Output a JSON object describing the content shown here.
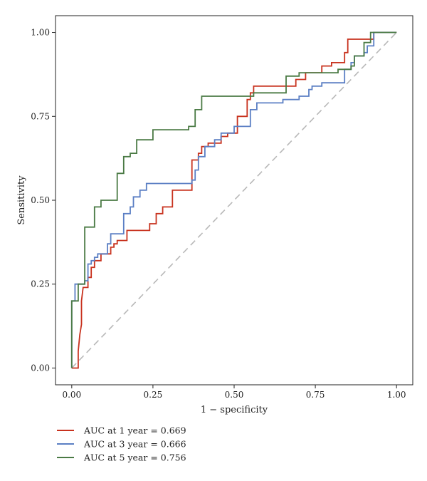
{
  "chart_data": {
    "type": "line",
    "title": "",
    "xlabel": "1 − specificity",
    "ylabel": "Sensitivity",
    "xlim": [
      -0.05,
      1.05
    ],
    "ylim": [
      -0.05,
      1.05
    ],
    "x_ticks": [
      0,
      0.25,
      0.5,
      0.75,
      1
    ],
    "y_ticks": [
      0,
      0.25,
      0.5,
      0.75,
      1
    ],
    "x_tick_labels": [
      "0.00",
      "0.25",
      "0.50",
      "0.75",
      "1.00"
    ],
    "y_tick_labels": [
      "0.00",
      "0.25",
      "0.50",
      "0.75",
      "1.00"
    ],
    "grid": false,
    "legend_position": "bottom-left",
    "reference_line": {
      "x": [
        0,
        1
      ],
      "y": [
        0,
        1
      ],
      "style": "dashed",
      "color": "#b8b8b8"
    },
    "series": [
      {
        "name": "AUC at 1 year = 0.669",
        "color": "#c8321e",
        "points": [
          [
            0,
            0
          ],
          [
            0.02,
            0
          ],
          [
            0.02,
            0.05
          ],
          [
            0.025,
            0.1
          ],
          [
            0.03,
            0.13
          ],
          [
            0.03,
            0.2
          ],
          [
            0.035,
            0.24
          ],
          [
            0.05,
            0.24
          ],
          [
            0.05,
            0.27
          ],
          [
            0.06,
            0.27
          ],
          [
            0.06,
            0.3
          ],
          [
            0.07,
            0.3
          ],
          [
            0.07,
            0.32
          ],
          [
            0.09,
            0.32
          ],
          [
            0.09,
            0.34
          ],
          [
            0.12,
            0.34
          ],
          [
            0.12,
            0.36
          ],
          [
            0.13,
            0.36
          ],
          [
            0.13,
            0.37
          ],
          [
            0.14,
            0.37
          ],
          [
            0.14,
            0.38
          ],
          [
            0.17,
            0.38
          ],
          [
            0.17,
            0.41
          ],
          [
            0.24,
            0.41
          ],
          [
            0.24,
            0.43
          ],
          [
            0.26,
            0.43
          ],
          [
            0.26,
            0.46
          ],
          [
            0.28,
            0.46
          ],
          [
            0.28,
            0.48
          ],
          [
            0.31,
            0.48
          ],
          [
            0.31,
            0.53
          ],
          [
            0.37,
            0.53
          ],
          [
            0.37,
            0.62
          ],
          [
            0.39,
            0.62
          ],
          [
            0.39,
            0.64
          ],
          [
            0.4,
            0.64
          ],
          [
            0.4,
            0.66
          ],
          [
            0.42,
            0.66
          ],
          [
            0.42,
            0.67
          ],
          [
            0.46,
            0.67
          ],
          [
            0.46,
            0.69
          ],
          [
            0.48,
            0.69
          ],
          [
            0.48,
            0.7
          ],
          [
            0.51,
            0.7
          ],
          [
            0.51,
            0.75
          ],
          [
            0.54,
            0.75
          ],
          [
            0.54,
            0.8
          ],
          [
            0.55,
            0.8
          ],
          [
            0.55,
            0.82
          ],
          [
            0.56,
            0.82
          ],
          [
            0.56,
            0.84
          ],
          [
            0.69,
            0.84
          ],
          [
            0.69,
            0.86
          ],
          [
            0.72,
            0.86
          ],
          [
            0.72,
            0.88
          ],
          [
            0.77,
            0.88
          ],
          [
            0.77,
            0.9
          ],
          [
            0.8,
            0.9
          ],
          [
            0.8,
            0.91
          ],
          [
            0.84,
            0.91
          ],
          [
            0.84,
            0.94
          ],
          [
            0.85,
            0.94
          ],
          [
            0.85,
            0.98
          ],
          [
            0.93,
            0.98
          ],
          [
            0.93,
            1
          ],
          [
            1,
            1
          ]
        ]
      },
      {
        "name": "AUC at 3 year = 0.666",
        "color": "#5b7fc4",
        "points": [
          [
            0,
            0
          ],
          [
            0,
            0.2
          ],
          [
            0.01,
            0.2
          ],
          [
            0.01,
            0.25
          ],
          [
            0.04,
            0.25
          ],
          [
            0.04,
            0.26
          ],
          [
            0.05,
            0.26
          ],
          [
            0.05,
            0.31
          ],
          [
            0.06,
            0.31
          ],
          [
            0.06,
            0.32
          ],
          [
            0.07,
            0.32
          ],
          [
            0.07,
            0.33
          ],
          [
            0.08,
            0.33
          ],
          [
            0.08,
            0.34
          ],
          [
            0.11,
            0.34
          ],
          [
            0.11,
            0.37
          ],
          [
            0.12,
            0.37
          ],
          [
            0.12,
            0.4
          ],
          [
            0.16,
            0.4
          ],
          [
            0.16,
            0.46
          ],
          [
            0.18,
            0.46
          ],
          [
            0.18,
            0.48
          ],
          [
            0.19,
            0.48
          ],
          [
            0.19,
            0.51
          ],
          [
            0.21,
            0.51
          ],
          [
            0.21,
            0.53
          ],
          [
            0.23,
            0.53
          ],
          [
            0.23,
            0.55
          ],
          [
            0.37,
            0.55
          ],
          [
            0.37,
            0.56
          ],
          [
            0.38,
            0.56
          ],
          [
            0.38,
            0.59
          ],
          [
            0.39,
            0.59
          ],
          [
            0.39,
            0.63
          ],
          [
            0.41,
            0.63
          ],
          [
            0.41,
            0.66
          ],
          [
            0.44,
            0.66
          ],
          [
            0.44,
            0.68
          ],
          [
            0.46,
            0.68
          ],
          [
            0.46,
            0.7
          ],
          [
            0.5,
            0.7
          ],
          [
            0.5,
            0.72
          ],
          [
            0.55,
            0.72
          ],
          [
            0.55,
            0.77
          ],
          [
            0.57,
            0.77
          ],
          [
            0.57,
            0.79
          ],
          [
            0.65,
            0.79
          ],
          [
            0.65,
            0.8
          ],
          [
            0.7,
            0.8
          ],
          [
            0.7,
            0.81
          ],
          [
            0.73,
            0.81
          ],
          [
            0.73,
            0.83
          ],
          [
            0.74,
            0.83
          ],
          [
            0.74,
            0.84
          ],
          [
            0.77,
            0.84
          ],
          [
            0.77,
            0.85
          ],
          [
            0.84,
            0.85
          ],
          [
            0.84,
            0.89
          ],
          [
            0.86,
            0.89
          ],
          [
            0.86,
            0.91
          ],
          [
            0.87,
            0.91
          ],
          [
            0.87,
            0.93
          ],
          [
            0.9,
            0.93
          ],
          [
            0.9,
            0.94
          ],
          [
            0.91,
            0.94
          ],
          [
            0.91,
            0.96
          ],
          [
            0.93,
            0.96
          ],
          [
            0.93,
            1
          ],
          [
            1,
            1
          ]
        ]
      },
      {
        "name": "AUC at 5 year = 0.756",
        "color": "#4a7a44",
        "points": [
          [
            0,
            0
          ],
          [
            0,
            0.2
          ],
          [
            0.02,
            0.2
          ],
          [
            0.02,
            0.25
          ],
          [
            0.04,
            0.25
          ],
          [
            0.04,
            0.42
          ],
          [
            0.07,
            0.42
          ],
          [
            0.07,
            0.48
          ],
          [
            0.09,
            0.48
          ],
          [
            0.09,
            0.5
          ],
          [
            0.14,
            0.5
          ],
          [
            0.14,
            0.58
          ],
          [
            0.16,
            0.58
          ],
          [
            0.16,
            0.63
          ],
          [
            0.18,
            0.63
          ],
          [
            0.18,
            0.64
          ],
          [
            0.2,
            0.64
          ],
          [
            0.2,
            0.68
          ],
          [
            0.25,
            0.68
          ],
          [
            0.25,
            0.71
          ],
          [
            0.36,
            0.71
          ],
          [
            0.36,
            0.72
          ],
          [
            0.38,
            0.72
          ],
          [
            0.38,
            0.77
          ],
          [
            0.4,
            0.77
          ],
          [
            0.4,
            0.81
          ],
          [
            0.56,
            0.81
          ],
          [
            0.56,
            0.82
          ],
          [
            0.66,
            0.82
          ],
          [
            0.66,
            0.87
          ],
          [
            0.7,
            0.87
          ],
          [
            0.7,
            0.88
          ],
          [
            0.82,
            0.88
          ],
          [
            0.82,
            0.89
          ],
          [
            0.86,
            0.89
          ],
          [
            0.86,
            0.9
          ],
          [
            0.87,
            0.9
          ],
          [
            0.87,
            0.93
          ],
          [
            0.9,
            0.93
          ],
          [
            0.9,
            0.97
          ],
          [
            0.92,
            0.97
          ],
          [
            0.92,
            1
          ],
          [
            1,
            1
          ]
        ]
      }
    ]
  }
}
